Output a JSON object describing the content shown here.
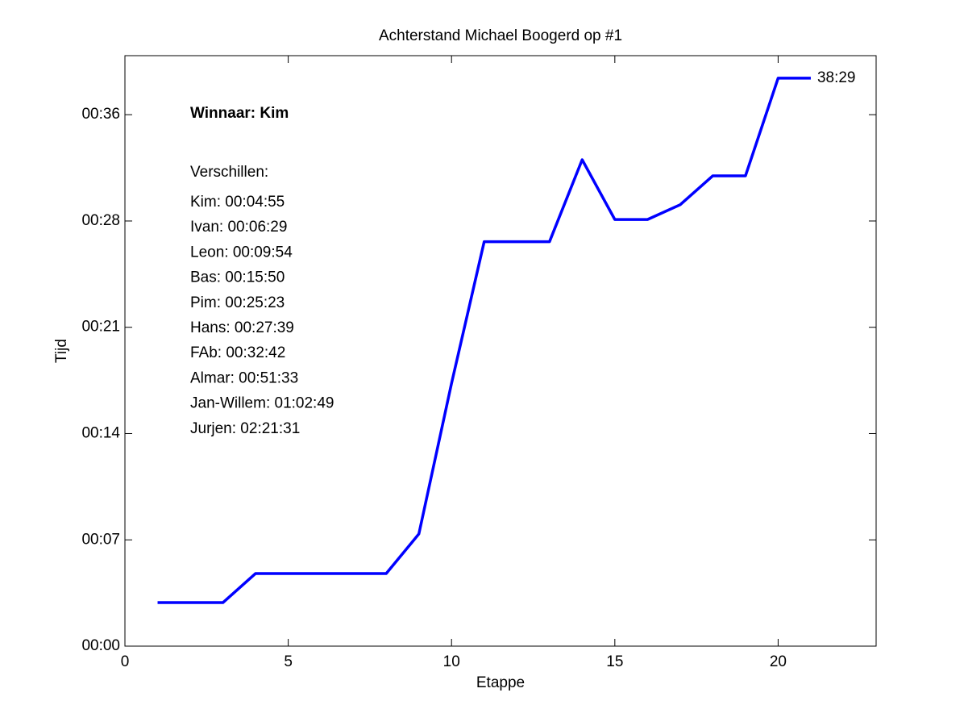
{
  "chart_data": {
    "type": "line",
    "title": "Achterstand Michael Boogerd op #1",
    "x_label": "Etappe",
    "y_label": "Tijd",
    "x": [
      1,
      2,
      3,
      4,
      5,
      6,
      7,
      8,
      9,
      10,
      11,
      12,
      13,
      14,
      15,
      16,
      17,
      18,
      19,
      20,
      21
    ],
    "values": [
      2.95,
      2.95,
      2.95,
      4.92,
      4.92,
      4.92,
      4.92,
      4.92,
      7.6,
      17.8,
      27.4,
      27.4,
      27.4,
      32.95,
      28.9,
      28.9,
      29.9,
      31.86,
      31.86,
      38.48,
      38.48
    ],
    "value_labels": [
      null,
      null,
      null,
      null,
      null,
      null,
      null,
      null,
      null,
      null,
      null,
      null,
      null,
      null,
      null,
      null,
      null,
      null,
      null,
      null,
      "38:29"
    ],
    "color": "#0000ff",
    "xlim": [
      0,
      23
    ],
    "xticks": [
      0,
      5,
      10,
      15,
      20
    ],
    "ylim": [
      0,
      40
    ],
    "yticks": [
      {
        "value": 0,
        "label": "00:00"
      },
      {
        "value": 7.2,
        "label": "00:07"
      },
      {
        "value": 14.4,
        "label": "00:14"
      },
      {
        "value": 21.6,
        "label": "00:21"
      },
      {
        "value": 28.8,
        "label": "00:28"
      },
      {
        "value": 36,
        "label": "00:36"
      }
    ],
    "annotations": {
      "winner": "Winnaar: Kim",
      "heading": "Verschillen:",
      "differences": [
        "Kim: 00:04:55",
        "Ivan: 00:06:29",
        "Leon: 00:09:54",
        "Bas: 00:15:50",
        "Pim: 00:25:23",
        "Hans: 00:27:39",
        "FAb: 00:32:42",
        "Almar: 00:51:33",
        "Jan-Willem: 01:02:49",
        "Jurjen: 02:21:31"
      ]
    }
  }
}
